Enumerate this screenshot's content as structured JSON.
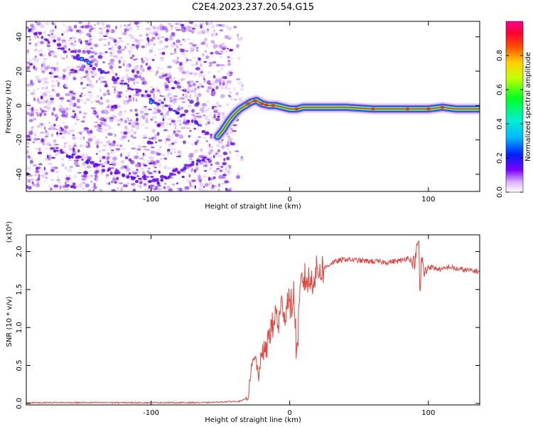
{
  "title": "C2E4.2023.237.20.54.G15",
  "colors": {
    "snr_line": "#e8413a",
    "ridge_core": "#e8141e",
    "colormap": [
      "#ffffff",
      "#d9b0ff",
      "#7a00ff",
      "#0020ff",
      "#00d0ff",
      "#00ff40",
      "#f0ff00",
      "#ff8000",
      "#ff0000",
      "#ff0080"
    ]
  },
  "chart_data": [
    {
      "type": "heatmap",
      "xlabel": "Height of straight line (km)",
      "ylabel": "Frequency (Hz)",
      "xlim": [
        -190,
        137
      ],
      "ylim": [
        -50,
        49
      ],
      "xticks": [
        -100,
        0,
        100
      ],
      "yticks": [
        -40,
        -20,
        0,
        20,
        40
      ],
      "colorbar": {
        "label": "Normalized spectral amplitude",
        "range": [
          0,
          1
        ],
        "ticks": [
          "0.0",
          "0.2",
          "0.4",
          "0.6",
          "0.8"
        ]
      },
      "noise_region_x": [
        -190,
        -42
      ],
      "ridge": {
        "x": [
          -52,
          -48,
          -44,
          -40,
          -36,
          -32,
          -28,
          -24,
          -20,
          -15,
          -10,
          -5,
          0,
          5,
          10,
          20,
          40,
          60,
          80,
          100,
          110,
          120,
          137
        ],
        "freq": [
          -18,
          -14,
          -9,
          -5,
          -2,
          0,
          2,
          3,
          1,
          0,
          0,
          -1,
          -2,
          -2,
          -1,
          -1,
          -1,
          -2,
          -2,
          -2,
          -1,
          -2,
          -2
        ]
      },
      "diagonal_tracks": [
        {
          "x": [
            -188,
            -150,
            -110,
            -78,
            -55
          ],
          "freq": [
            45,
            27,
            8,
            -5,
            -18
          ]
        },
        {
          "x": [
            -170,
            -130,
            -95,
            -60
          ],
          "freq": [
            -25,
            -38,
            -44,
            -30
          ]
        }
      ]
    },
    {
      "type": "line",
      "xlabel": "Height of straight line (km)",
      "ylabel": "SNR (10 * v/v)",
      "y_multiplier": "(x10⁴)",
      "xlim": [
        -190,
        137
      ],
      "ylim": [
        -0.02,
        2.22
      ],
      "xticks": [
        -100,
        0,
        100
      ],
      "yticks": [
        0.0,
        0.5,
        1.0,
        1.5,
        2.0
      ],
      "series": [
        {
          "x": [
            -190,
            -150,
            -100,
            -60,
            -35,
            -30,
            -28,
            -25,
            -22,
            -20,
            -17,
            -15,
            -12,
            -10,
            -8,
            -5,
            -3,
            -1,
            0,
            3,
            5,
            8,
            10,
            15,
            20,
            25,
            30,
            40,
            50,
            60,
            70,
            80,
            85,
            90,
            92,
            93,
            94,
            95,
            97,
            100,
            105,
            110,
            115,
            120,
            125,
            130,
            137
          ],
          "values": [
            0.01,
            0.01,
            0.01,
            0.01,
            0.03,
            0.08,
            0.45,
            0.6,
            0.35,
            0.72,
            0.65,
            0.95,
            1.0,
            1.2,
            1.05,
            1.35,
            1.1,
            1.5,
            1.2,
            1.45,
            0.62,
            1.55,
            1.65,
            1.6,
            1.75,
            1.78,
            1.85,
            1.9,
            1.88,
            1.87,
            1.86,
            1.88,
            1.92,
            1.85,
            2.05,
            2.2,
            1.35,
            1.95,
            1.7,
            1.8,
            1.78,
            1.76,
            1.8,
            1.77,
            1.76,
            1.75,
            1.74
          ]
        }
      ]
    }
  ]
}
